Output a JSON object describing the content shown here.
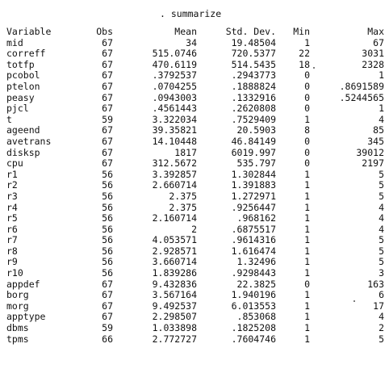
{
  "command": ". summarize",
  "columns": [
    "Variable",
    "Obs",
    "Mean",
    "Std. Dev.",
    "Min",
    "Max"
  ],
  "rows": [
    {
      "variable": "mid",
      "obs": "67",
      "mean": "34",
      "sd": "19.48504",
      "min": "1",
      "max": "67"
    },
    {
      "variable": "correff",
      "obs": "67",
      "mean": "515.0746",
      "sd": "720.5377",
      "min": "22",
      "max": "3031"
    },
    {
      "variable": "totfp",
      "obs": "67",
      "mean": "470.6119",
      "sd": "514.5435",
      "min": "18",
      "max": "2328"
    },
    {
      "variable": "pcobol",
      "obs": "67",
      "mean": ".3792537",
      "sd": ".2943773",
      "min": "0",
      "max": "1"
    },
    {
      "variable": "ptelon",
      "obs": "67",
      "mean": ".0704255",
      "sd": ".1888824",
      "min": "0",
      "max": ".8691589"
    },
    {
      "variable": "peasy",
      "obs": "67",
      "mean": ".0943003",
      "sd": ".1332916",
      "min": "0",
      "max": ".5244565"
    },
    {
      "variable": "pjcl",
      "obs": "67",
      "mean": ".4561443",
      "sd": ".2620808",
      "min": "0",
      "max": "1"
    },
    {
      "variable": "t",
      "obs": "59",
      "mean": "3.322034",
      "sd": ".7529409",
      "min": "1",
      "max": "4"
    },
    {
      "variable": "ageend",
      "obs": "67",
      "mean": "39.35821",
      "sd": "20.5903",
      "min": "8",
      "max": "85"
    },
    {
      "variable": "avetrans",
      "obs": "67",
      "mean": "14.10448",
      "sd": "46.84149",
      "min": "0",
      "max": "345"
    },
    {
      "variable": "disksp",
      "obs": "67",
      "mean": "1817",
      "sd": "6019.997",
      "min": "0",
      "max": "39012"
    },
    {
      "variable": "cpu",
      "obs": "67",
      "mean": "312.5672",
      "sd": "535.797",
      "min": "0",
      "max": "2197"
    },
    {
      "variable": "r1",
      "obs": "56",
      "mean": "3.392857",
      "sd": "1.302844",
      "min": "1",
      "max": "5"
    },
    {
      "variable": "r2",
      "obs": "56",
      "mean": "2.660714",
      "sd": "1.391883",
      "min": "1",
      "max": "5"
    },
    {
      "variable": "r3",
      "obs": "56",
      "mean": "2.375",
      "sd": "1.272971",
      "min": "1",
      "max": "5"
    },
    {
      "variable": "r4",
      "obs": "56",
      "mean": "2.375",
      "sd": ".9256447",
      "min": "1",
      "max": "4"
    },
    {
      "variable": "r5",
      "obs": "56",
      "mean": "2.160714",
      "sd": ".968162",
      "min": "1",
      "max": "4"
    },
    {
      "variable": "r6",
      "obs": "56",
      "mean": "2",
      "sd": ".6875517",
      "min": "1",
      "max": "4"
    },
    {
      "variable": "r7",
      "obs": "56",
      "mean": "4.053571",
      "sd": ".9614316",
      "min": "1",
      "max": "5"
    },
    {
      "variable": "r8",
      "obs": "56",
      "mean": "2.928571",
      "sd": "1.616474",
      "min": "1",
      "max": "5"
    },
    {
      "variable": "r9",
      "obs": "56",
      "mean": "3.660714",
      "sd": "1.32496",
      "min": "1",
      "max": "5"
    },
    {
      "variable": "r10",
      "obs": "56",
      "mean": "1.839286",
      "sd": ".9298443",
      "min": "1",
      "max": "3"
    },
    {
      "variable": "appdef",
      "obs": "67",
      "mean": "9.432836",
      "sd": "22.3825",
      "min": "0",
      "max": "163"
    },
    {
      "variable": "borg",
      "obs": "67",
      "mean": "3.567164",
      "sd": "1.940196",
      "min": "1",
      "max": "6"
    },
    {
      "variable": "morg",
      "obs": "67",
      "mean": "9.492537",
      "sd": "6.013553",
      "min": "1",
      "max": "17"
    },
    {
      "variable": "apptype",
      "obs": "67",
      "mean": "2.298507",
      "sd": ".853068",
      "min": "1",
      "max": "4"
    },
    {
      "variable": "dbms",
      "obs": "59",
      "mean": "1.033898",
      "sd": ".1825208",
      "min": "1",
      "max": "2"
    },
    {
      "variable": "tpms",
      "obs": "66",
      "mean": "2.772727",
      "sd": ".7604746",
      "min": "1",
      "max": "5"
    }
  ]
}
